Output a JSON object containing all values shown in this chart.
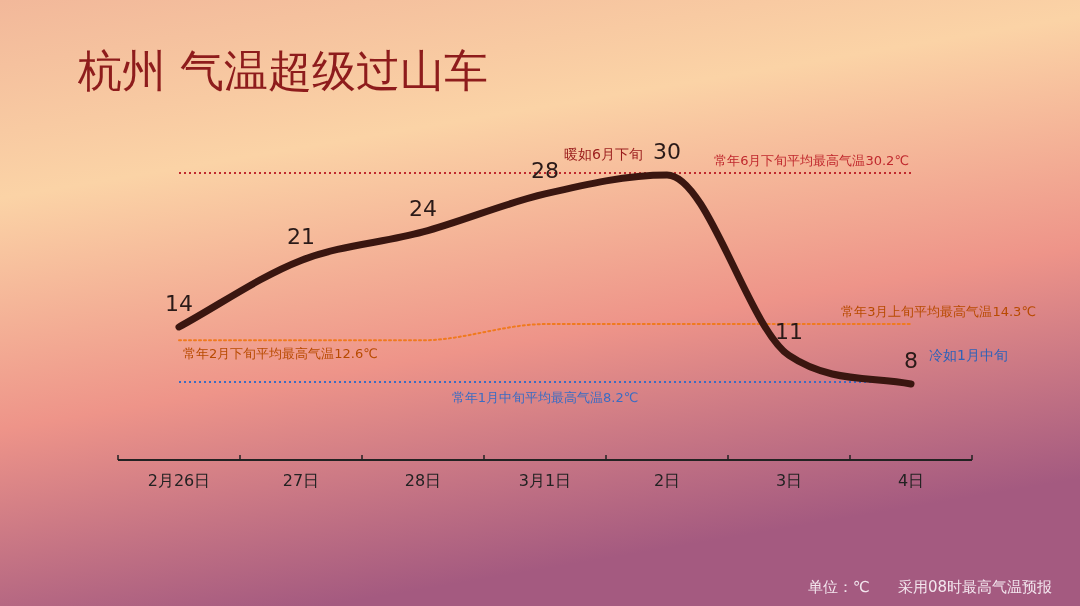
{
  "chart_data": {
    "type": "line",
    "title": "杭州  气温超级过山车",
    "categories": [
      "2月26日",
      "27日",
      "28日",
      "3月1日",
      "2日",
      "3日",
      "4日"
    ],
    "series": [
      {
        "color": "#3a1610",
        "values": [
          14,
          21,
          24,
          28,
          30,
          11,
          8
        ]
      },
      {
        "color": "#f07a1e",
        "line_style": "dotted",
        "data_labels": false,
        "values": [
          12.6,
          12.6,
          12.6,
          14.3,
          14.3,
          14.3,
          14.3
        ]
      }
    ],
    "data_labels": true,
    "tick_labels": "x",
    "marker": "none",
    "ref_lines": [
      {
        "axis": "y",
        "value": 30.2,
        "label": "常年6月下旬平均最高气温30.2℃",
        "color": "#c0282d",
        "line_style": "dotted"
      },
      {
        "axis": "y",
        "value": 8.2,
        "label": "常年1月中旬平均最高气温8.2℃",
        "color": "#3a6cc4",
        "line_style": "dotted"
      }
    ],
    "annotations": [
      {
        "text": "暖如6月下旬",
        "x": "2日",
        "y": 30
      },
      {
        "text": "冷如1月中旬",
        "x": "4日",
        "y": 8
      },
      {
        "text": "常年2月下旬平均最高气温12.6℃",
        "x": "2月26日",
        "y": 12.6
      },
      {
        "text": "常年3月上旬平均最高气温14.3℃",
        "x": "4日",
        "y": 14.3
      },
      "单位：℃",
      "采用08时最高气温预报"
    ]
  }
}
